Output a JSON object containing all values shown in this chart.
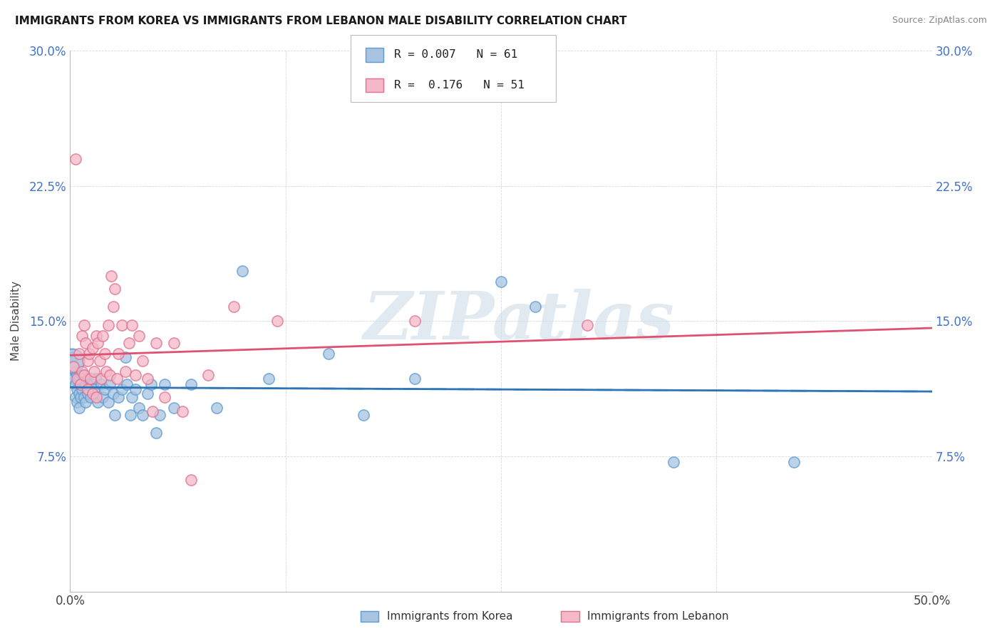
{
  "title": "IMMIGRANTS FROM KOREA VS IMMIGRANTS FROM LEBANON MALE DISABILITY CORRELATION CHART",
  "source": "Source: ZipAtlas.com",
  "ylabel": "Male Disability",
  "xlim": [
    0.0,
    0.5
  ],
  "ylim": [
    0.0,
    0.3
  ],
  "xtick_vals": [
    0.0,
    0.125,
    0.25,
    0.375,
    0.5
  ],
  "xticklabels": [
    "0.0%",
    "",
    "",
    "",
    "50.0%"
  ],
  "ytick_vals": [
    0.0,
    0.075,
    0.15,
    0.225,
    0.3
  ],
  "yticklabels_left": [
    "",
    "7.5%",
    "15.0%",
    "22.5%",
    "30.0%"
  ],
  "yticklabels_right": [
    "",
    "7.5%",
    "15.0%",
    "22.5%",
    "30.0%"
  ],
  "korea_R": 0.007,
  "korea_N": 61,
  "lebanon_R": 0.176,
  "lebanon_N": 51,
  "korea_scatter_color": "#a8c4e0",
  "korea_edge_color": "#5b9bd5",
  "lebanon_scatter_color": "#f4b8c8",
  "lebanon_edge_color": "#e07090",
  "korea_line_color": "#2e75b6",
  "lebanon_line_color": "#e05070",
  "background_color": "#ffffff",
  "grid_color": "#c8c8c8",
  "watermark_color": "#d0dce8",
  "tick_label_color": "#4472c4",
  "korea_scatter": [
    [
      0.001,
      0.13
    ],
    [
      0.002,
      0.125
    ],
    [
      0.002,
      0.118
    ],
    [
      0.003,
      0.122
    ],
    [
      0.003,
      0.115
    ],
    [
      0.003,
      0.108
    ],
    [
      0.004,
      0.12
    ],
    [
      0.004,
      0.112
    ],
    [
      0.004,
      0.105
    ],
    [
      0.005,
      0.118
    ],
    [
      0.005,
      0.11
    ],
    [
      0.005,
      0.102
    ],
    [
      0.006,
      0.115
    ],
    [
      0.006,
      0.108
    ],
    [
      0.007,
      0.12
    ],
    [
      0.007,
      0.112
    ],
    [
      0.008,
      0.118
    ],
    [
      0.008,
      0.108
    ],
    [
      0.009,
      0.115
    ],
    [
      0.009,
      0.105
    ],
    [
      0.01,
      0.118
    ],
    [
      0.01,
      0.11
    ],
    [
      0.011,
      0.115
    ],
    [
      0.012,
      0.108
    ],
    [
      0.013,
      0.115
    ],
    [
      0.014,
      0.112
    ],
    [
      0.015,
      0.118
    ],
    [
      0.016,
      0.105
    ],
    [
      0.018,
      0.115
    ],
    [
      0.019,
      0.108
    ],
    [
      0.02,
      0.112
    ],
    [
      0.022,
      0.105
    ],
    [
      0.023,
      0.115
    ],
    [
      0.025,
      0.11
    ],
    [
      0.026,
      0.098
    ],
    [
      0.028,
      0.108
    ],
    [
      0.03,
      0.112
    ],
    [
      0.032,
      0.13
    ],
    [
      0.033,
      0.115
    ],
    [
      0.035,
      0.098
    ],
    [
      0.036,
      0.108
    ],
    [
      0.038,
      0.112
    ],
    [
      0.04,
      0.102
    ],
    [
      0.042,
      0.098
    ],
    [
      0.045,
      0.11
    ],
    [
      0.047,
      0.115
    ],
    [
      0.05,
      0.088
    ],
    [
      0.052,
      0.098
    ],
    [
      0.055,
      0.115
    ],
    [
      0.06,
      0.102
    ],
    [
      0.07,
      0.115
    ],
    [
      0.085,
      0.102
    ],
    [
      0.1,
      0.178
    ],
    [
      0.115,
      0.118
    ],
    [
      0.15,
      0.132
    ],
    [
      0.17,
      0.098
    ],
    [
      0.2,
      0.118
    ],
    [
      0.25,
      0.172
    ],
    [
      0.27,
      0.158
    ],
    [
      0.35,
      0.072
    ],
    [
      0.42,
      0.072
    ]
  ],
  "korea_big_dot": [
    0.001,
    0.128
  ],
  "lebanon_scatter": [
    [
      0.002,
      0.125
    ],
    [
      0.003,
      0.24
    ],
    [
      0.004,
      0.118
    ],
    [
      0.005,
      0.132
    ],
    [
      0.006,
      0.115
    ],
    [
      0.007,
      0.142
    ],
    [
      0.007,
      0.122
    ],
    [
      0.008,
      0.148
    ],
    [
      0.008,
      0.12
    ],
    [
      0.009,
      0.138
    ],
    [
      0.01,
      0.128
    ],
    [
      0.01,
      0.112
    ],
    [
      0.011,
      0.132
    ],
    [
      0.012,
      0.118
    ],
    [
      0.013,
      0.135
    ],
    [
      0.013,
      0.11
    ],
    [
      0.014,
      0.122
    ],
    [
      0.015,
      0.142
    ],
    [
      0.015,
      0.108
    ],
    [
      0.016,
      0.138
    ],
    [
      0.017,
      0.128
    ],
    [
      0.018,
      0.118
    ],
    [
      0.019,
      0.142
    ],
    [
      0.02,
      0.132
    ],
    [
      0.021,
      0.122
    ],
    [
      0.022,
      0.148
    ],
    [
      0.023,
      0.12
    ],
    [
      0.024,
      0.175
    ],
    [
      0.025,
      0.158
    ],
    [
      0.026,
      0.168
    ],
    [
      0.027,
      0.118
    ],
    [
      0.028,
      0.132
    ],
    [
      0.03,
      0.148
    ],
    [
      0.032,
      0.122
    ],
    [
      0.034,
      0.138
    ],
    [
      0.036,
      0.148
    ],
    [
      0.038,
      0.12
    ],
    [
      0.04,
      0.142
    ],
    [
      0.042,
      0.128
    ],
    [
      0.045,
      0.118
    ],
    [
      0.048,
      0.1
    ],
    [
      0.05,
      0.138
    ],
    [
      0.055,
      0.108
    ],
    [
      0.06,
      0.138
    ],
    [
      0.065,
      0.1
    ],
    [
      0.07,
      0.062
    ],
    [
      0.08,
      0.12
    ],
    [
      0.095,
      0.158
    ],
    [
      0.12,
      0.15
    ],
    [
      0.2,
      0.15
    ],
    [
      0.3,
      0.148
    ]
  ],
  "legend_entries": [
    "Immigrants from Korea",
    "Immigrants from Lebanon"
  ]
}
